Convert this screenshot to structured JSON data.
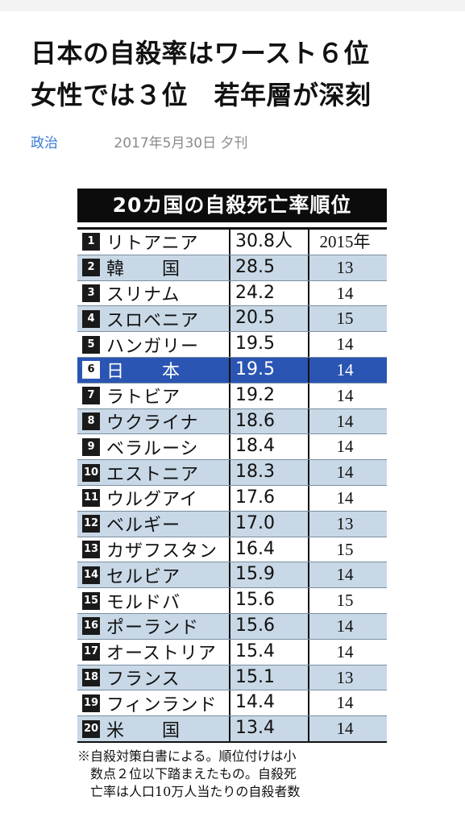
{
  "headline": {
    "line1": "日本の自殺率はワースト６位",
    "line2": "女性では３位　若年層が深刻"
  },
  "meta": {
    "category": "政治",
    "date": "2017年5月30日 夕刊"
  },
  "figure": {
    "title": "20カ国の自殺死亡率順位",
    "rows": [
      {
        "rank": "1",
        "country": "リトアニア",
        "rate": "30.8人",
        "year": "2015年"
      },
      {
        "rank": "2",
        "country": "韓　　国",
        "rate": "28.5",
        "year": "13"
      },
      {
        "rank": "3",
        "country": "スリナム",
        "rate": "24.2",
        "year": "14"
      },
      {
        "rank": "4",
        "country": "スロベニア",
        "rate": "20.5",
        "year": "15"
      },
      {
        "rank": "5",
        "country": "ハンガリー",
        "rate": "19.5",
        "year": "14"
      },
      {
        "rank": "6",
        "country": "日　　本",
        "rate": "19.5",
        "year": "14"
      },
      {
        "rank": "7",
        "country": "ラトビア",
        "rate": "19.2",
        "year": "14"
      },
      {
        "rank": "8",
        "country": "ウクライナ",
        "rate": "18.6",
        "year": "14"
      },
      {
        "rank": "9",
        "country": "ベラルーシ",
        "rate": "18.4",
        "year": "14"
      },
      {
        "rank": "10",
        "country": "エストニア",
        "rate": "18.3",
        "year": "14"
      },
      {
        "rank": "11",
        "country": "ウルグアイ",
        "rate": "17.6",
        "year": "14"
      },
      {
        "rank": "12",
        "country": "ベルギー",
        "rate": "17.0",
        "year": "13"
      },
      {
        "rank": "13",
        "country": "カザフスタン",
        "rate": "16.4",
        "year": "15"
      },
      {
        "rank": "14",
        "country": "セルビア",
        "rate": "15.9",
        "year": "14"
      },
      {
        "rank": "15",
        "country": "モルドバ",
        "rate": "15.6",
        "year": "15"
      },
      {
        "rank": "16",
        "country": "ポーランド",
        "rate": "15.6",
        "year": "14"
      },
      {
        "rank": "17",
        "country": "オーストリア",
        "rate": "15.4",
        "year": "14"
      },
      {
        "rank": "18",
        "country": "フランス",
        "rate": "15.1",
        "year": "13"
      },
      {
        "rank": "19",
        "country": "フィンランド",
        "rate": "14.4",
        "year": "14"
      },
      {
        "rank": "20",
        "country": "米　　国",
        "rate": "13.4",
        "year": "14"
      }
    ],
    "highlight_rank": "6",
    "colors": {
      "highlight": "#2b55b3",
      "stripe": "#c8d8e6"
    },
    "footnote": {
      "line1": "※自殺対策白書による。順位付けは小",
      "line2": "　数点２位以下踏まえたもの。自殺死",
      "line3": "　亡率は人口10万人当たりの自殺者数"
    }
  }
}
